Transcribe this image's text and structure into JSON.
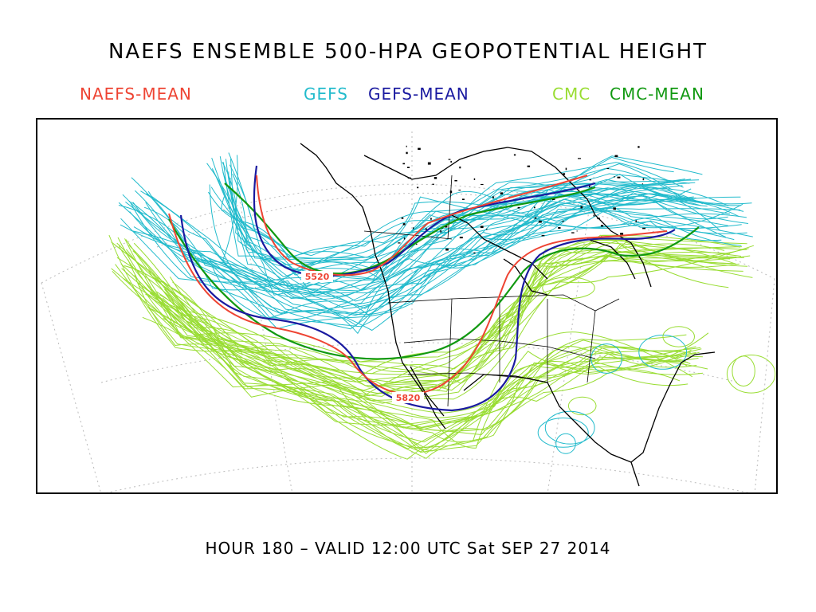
{
  "title": "NAEFS ENSEMBLE 500-HPA GEOPOTENTIAL HEIGHT",
  "legend": {
    "naefs_mean": {
      "label": "NAEFS-MEAN",
      "color": "#ee4433"
    },
    "gefs": {
      "label": "GEFS",
      "color": "#22bbcc"
    },
    "gefs_mean": {
      "label": "GEFS-MEAN",
      "color": "#1a1aa0"
    },
    "cmc": {
      "label": "CMC",
      "color": "#99dd33"
    },
    "cmc_mean": {
      "label": "CMC-MEAN",
      "color": "#119911"
    }
  },
  "contour_labels": {
    "northern": "5520",
    "southern": "5820"
  },
  "footer": "HOUR 180 – VALID 12:00 UTC Sat SEP 27 2014"
}
